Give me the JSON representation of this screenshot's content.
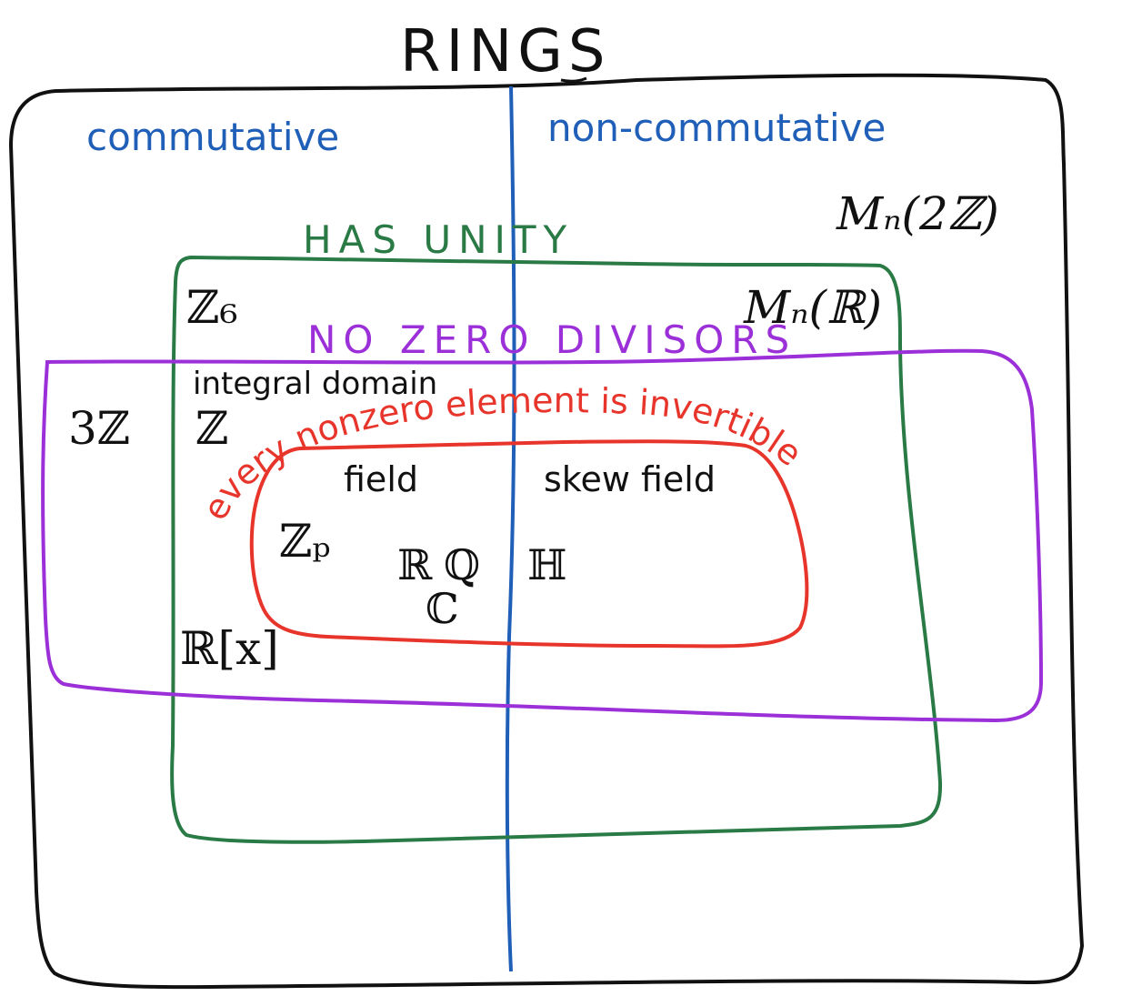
{
  "title": "RINGS",
  "columns": {
    "left": "commutative",
    "right": "non-commutative"
  },
  "regions": {
    "unity": "HAS UNITY",
    "no_zero_divisors": "NO ZERO DIVISORS",
    "integral_domain": "integral domain",
    "invertible": "every nonzero element is invertible",
    "field": "field",
    "skew_field": "skew field"
  },
  "rings": {
    "mn_2z": "Mₙ(2ℤ)",
    "mn_r": "Mₙ(ℝ)",
    "z6": "ℤ₆",
    "three_z": "3ℤ",
    "z": "ℤ",
    "zp": "ℤₚ",
    "r": "ℝ",
    "q": "ℚ",
    "c": "ℂ",
    "h": "ℍ",
    "r_x": "ℝ[x]"
  },
  "colors": {
    "rings_boundary": "#111111",
    "divider": "#1f5fb8",
    "has_unity": "#2a7a46",
    "no_zero_divisors": "#9b30d9",
    "invertible": "#e8352b",
    "text": "#111111"
  }
}
